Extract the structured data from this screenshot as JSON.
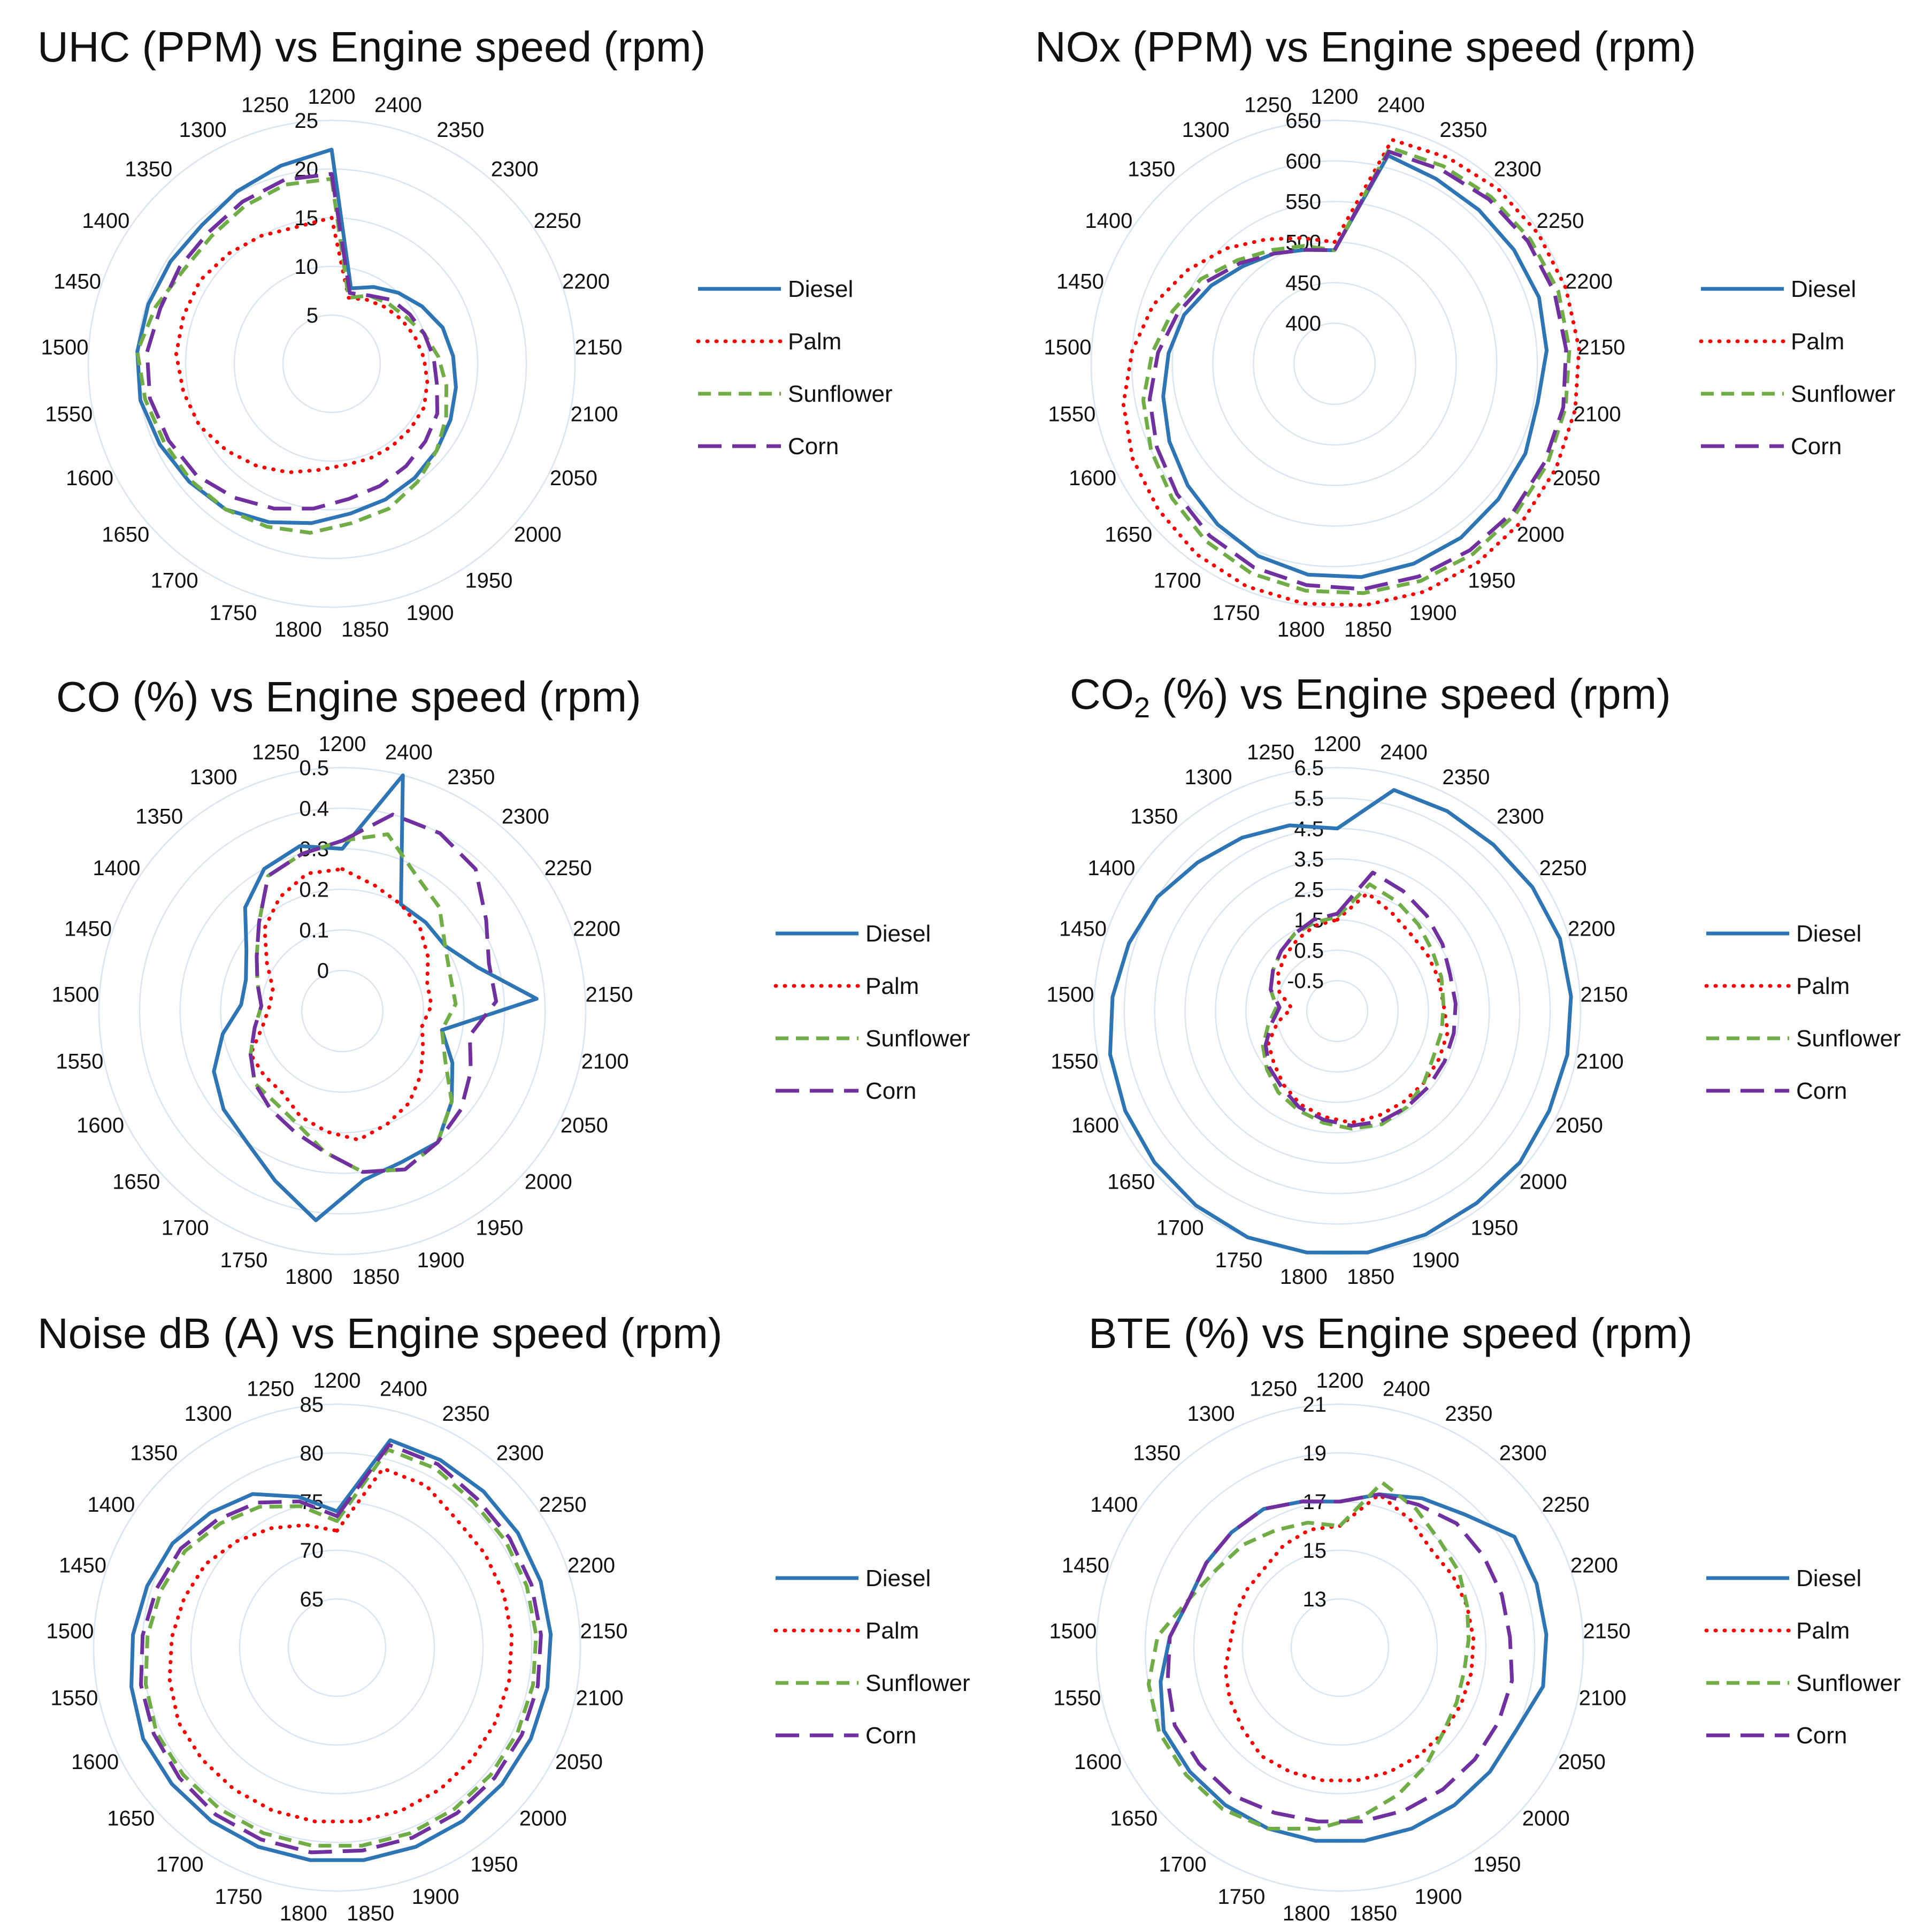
{
  "chart_data": [
    {
      "type": "radar",
      "title": "UHC (PPM) vs Engine speed (rpm)",
      "title_subscript": "",
      "axis_labels": [
        "1200",
        "2400",
        "2350",
        "2300",
        "2250",
        "2200",
        "2150",
        "2100",
        "2050",
        "2000",
        "1950",
        "1900",
        "1850",
        "1800",
        "1750",
        "1700",
        "1650",
        "1600",
        "1550",
        "1500",
        "1450",
        "1400",
        "1350",
        "1300",
        "1250"
      ],
      "radial_ticks": [
        "5",
        "10",
        "15",
        "20",
        "25"
      ],
      "rlim": [
        0,
        25
      ],
      "series": [
        {
          "name": "Diesel",
          "values": [
            22,
            8,
            9,
            10,
            11,
            12,
            12.5,
            13,
            13.5,
            14,
            14.5,
            15,
            15.5,
            16.5,
            17.5,
            18.5,
            19,
            19.5,
            20,
            20,
            19.8,
            19.6,
            19.5,
            20.2,
            21
          ]
        },
        {
          "name": "Palm",
          "values": [
            15,
            7,
            7.5,
            8,
            8.5,
            9,
            9.5,
            10,
            10.5,
            10.5,
            10.5,
            10.5,
            10.5,
            11,
            12,
            13,
            14,
            15,
            15.5,
            16,
            16,
            16,
            15.5,
            15,
            14.5
          ]
        },
        {
          "name": "Sunflower",
          "values": [
            19,
            7,
            8,
            8.5,
            9,
            10,
            11,
            12,
            13,
            14,
            15,
            16,
            16.5,
            17.5,
            18,
            18.5,
            18.8,
            19,
            19.5,
            20,
            19,
            18,
            18,
            18.5,
            19
          ]
        },
        {
          "name": "Corn",
          "values": [
            19.5,
            7.5,
            8,
            9,
            9.5,
            10,
            10.5,
            11,
            12,
            12.5,
            13,
            13.5,
            14,
            15,
            16,
            17,
            18,
            18.5,
            19,
            19,
            18.5,
            18.5,
            18.5,
            19,
            19.5
          ]
        }
      ]
    },
    {
      "type": "radar",
      "title": "NOx (PPM) vs Engine speed (rpm)",
      "title_subscript": "",
      "axis_labels": [
        "1200",
        "2400",
        "2350",
        "2300",
        "2250",
        "2200",
        "2150",
        "2100",
        "2050",
        "2000",
        "1950",
        "1900",
        "1850",
        "1800",
        "1750",
        "1700",
        "1650",
        "1600",
        "1550",
        "1500",
        "1450",
        "1400",
        "1350",
        "1300",
        "1250"
      ],
      "radial_ticks": [
        "400",
        "450",
        "500",
        "550",
        "600",
        "650"
      ],
      "rlim": [
        350,
        650
      ],
      "series": [
        {
          "name": "Diesel",
          "values": [
            490,
            615,
            610,
            610,
            612,
            615,
            612,
            605,
            610,
            612,
            615,
            615,
            615,
            612,
            605,
            595,
            585,
            575,
            565,
            555,
            545,
            530,
            515,
            505,
            495
          ]
        },
        {
          "name": "Palm",
          "values": [
            500,
            635,
            640,
            645,
            648,
            650,
            652,
            652,
            652,
            652,
            652,
            652,
            650,
            648,
            645,
            640,
            632,
            625,
            615,
            600,
            585,
            565,
            545,
            525,
            510
          ]
        },
        {
          "name": "Sunflower",
          "values": [
            490,
            625,
            628,
            632,
            636,
            640,
            640,
            640,
            640,
            640,
            640,
            638,
            635,
            632,
            628,
            620,
            610,
            600,
            590,
            575,
            560,
            545,
            525,
            510,
            500
          ]
        },
        {
          "name": "Corn",
          "values": [
            490,
            620,
            623,
            628,
            632,
            635,
            636,
            637,
            636,
            636,
            634,
            632,
            630,
            625,
            620,
            612,
            602,
            592,
            582,
            568,
            553,
            538,
            520,
            505,
            495
          ]
        }
      ]
    },
    {
      "type": "radar",
      "title": "CO (%) vs Engine speed (rpm)",
      "title_subscript": "",
      "axis_labels": [
        "1200",
        "2400",
        "2350",
        "2300",
        "2250",
        "2200",
        "2150",
        "2100",
        "2050",
        "2000",
        "1950",
        "1900",
        "1850",
        "1800",
        "1750",
        "1700",
        "1650",
        "1600",
        "1550",
        "1500",
        "1450",
        "1400",
        "1350",
        "1300",
        "1250"
      ],
      "radial_ticks": [
        "0",
        "0.1",
        "0.2",
        "0.3",
        "0.4",
        "0.5"
      ],
      "rlim": [
        -0.1,
        0.5
      ],
      "series": [
        {
          "name": "Diesel",
          "values": [
            0.3,
            0.5,
            0.2,
            0.2,
            0.2,
            0.25,
            0.38,
            0.15,
            0.2,
            0.25,
            0.3,
            0.3,
            0.32,
            0.42,
            0.35,
            0.3,
            0.28,
            0.25,
            0.2,
            0.15,
            0.15,
            0.18,
            0.25,
            0.3,
            0.32
          ]
        },
        {
          "name": "Palm",
          "values": [
            0.25,
            0.22,
            0.2,
            0.18,
            0.15,
            0.12,
            0.12,
            0.1,
            0.12,
            0.15,
            0.18,
            0.2,
            0.22,
            0.2,
            0.18,
            0.15,
            0.15,
            0.15,
            0.1,
            0.08,
            0.08,
            0.12,
            0.18,
            0.22,
            0.25
          ]
        },
        {
          "name": "Sunflower",
          "values": [
            0.32,
            0.35,
            0.28,
            0.25,
            0.2,
            0.18,
            0.18,
            0.15,
            0.18,
            0.25,
            0.3,
            0.32,
            0.3,
            0.25,
            0.2,
            0.18,
            0.18,
            0.15,
            0.12,
            0.1,
            0.12,
            0.15,
            0.2,
            0.28,
            0.3
          ]
        },
        {
          "name": "Corn",
          "values": [
            0.32,
            0.4,
            0.4,
            0.38,
            0.32,
            0.28,
            0.28,
            0.22,
            0.25,
            0.28,
            0.3,
            0.32,
            0.3,
            0.25,
            0.22,
            0.2,
            0.18,
            0.15,
            0.12,
            0.1,
            0.12,
            0.15,
            0.2,
            0.28,
            0.3
          ]
        }
      ]
    },
    {
      "type": "radar",
      "title": "CO (%) vs Engine speed (rpm)",
      "title_subscript": "2",
      "axis_labels": [
        "1200",
        "2400",
        "2350",
        "2300",
        "2250",
        "2200",
        "2150",
        "2100",
        "2050",
        "2000",
        "1950",
        "1900",
        "1850",
        "1800",
        "1750",
        "1700",
        "1650",
        "1600",
        "1550",
        "1500",
        "1450",
        "1400",
        "1350",
        "1300",
        "1250"
      ],
      "radial_ticks": [
        "-0.5",
        "0.5",
        "1.5",
        "2.5",
        "3.5",
        "4.5",
        "5.5",
        "6.5"
      ],
      "rlim": [
        -1.5,
        6.5
      ],
      "series": [
        {
          "name": "Diesel",
          "values": [
            4.5,
            6,
            6,
            6,
            6.1,
            6.2,
            6.2,
            6.2,
            6.2,
            6.3,
            6.3,
            6.4,
            6.5,
            6.5,
            6.5,
            6.4,
            6.3,
            6.2,
            6.1,
            5.9,
            5.7,
            5.5,
            5.2,
            5,
            4.8
          ]
        },
        {
          "name": "Palm",
          "values": [
            1.5,
            2.5,
            2.2,
            2,
            2,
            2,
            2,
            2.2,
            2.2,
            2.2,
            2.2,
            2.2,
            2.2,
            2,
            1.8,
            1.5,
            1.2,
            1,
            0.5,
            0,
            0.5,
            0.8,
            1,
            1.2,
            1.4
          ]
        },
        {
          "name": "Sunflower",
          "values": [
            1.6,
            2.8,
            2.6,
            2.4,
            2.2,
            2.1,
            2,
            2,
            2,
            2.2,
            2.4,
            2.5,
            2.4,
            2.2,
            2,
            1.8,
            1.5,
            1.2,
            0.8,
            0.5,
            0.8,
            1,
            1.2,
            1.4,
            1.5
          ]
        },
        {
          "name": "Corn",
          "values": [
            1.7,
            3.2,
            3,
            2.8,
            2.6,
            2.4,
            2.4,
            2.4,
            2.4,
            2.4,
            2.4,
            2.4,
            2.3,
            2.1,
            1.9,
            1.6,
            1.4,
            1.1,
            0.7,
            0.4,
            0.8,
            1,
            1.2,
            1.4,
            1.6
          ]
        }
      ]
    },
    {
      "type": "radar",
      "title": "Noise dB (A)  vs Engine speed (rpm)",
      "title_subscript": "",
      "axis_labels": [
        "1200",
        "2400",
        "2350",
        "2300",
        "2250",
        "2200",
        "2150",
        "2100",
        "2050",
        "2000",
        "1950",
        "1900",
        "1850",
        "1800",
        "1750",
        "1700",
        "1650",
        "1600",
        "1550",
        "1500",
        "1450",
        "1400",
        "1350",
        "1300",
        "1250"
      ],
      "radial_ticks": [
        "65",
        "70",
        "75",
        "80",
        "85"
      ],
      "rlim": [
        60,
        85
      ],
      "series": [
        {
          "name": "Diesel",
          "values": [
            74,
            82,
            82,
            82,
            82,
            82,
            82,
            82,
            82,
            82,
            82,
            82,
            82,
            82,
            82,
            82,
            82,
            82,
            81.5,
            81,
            80.5,
            80,
            79,
            78,
            76
          ]
        },
        {
          "name": "Palm",
          "values": [
            72,
            79,
            79,
            78,
            78,
            78,
            78,
            78,
            78,
            78,
            78,
            78,
            78,
            78,
            78,
            78,
            78,
            78,
            77.5,
            77,
            76.5,
            76,
            75,
            74,
            73
          ]
        },
        {
          "name": "Sunflower",
          "values": [
            73,
            81,
            81,
            80.5,
            80.5,
            80.5,
            80.5,
            80.5,
            80.5,
            80.5,
            80.5,
            80.5,
            80.5,
            80.5,
            80.5,
            80.5,
            80.5,
            80.5,
            80,
            79.5,
            79,
            78.5,
            77.5,
            76.5,
            75
          ]
        },
        {
          "name": "Corn",
          "values": [
            73.5,
            81.5,
            81.5,
            81,
            81,
            81,
            81,
            81,
            81,
            81,
            81,
            81,
            81,
            81.2,
            81.2,
            81.2,
            81,
            80.8,
            80.5,
            80,
            79.5,
            79,
            78,
            77,
            75.5
          ]
        }
      ]
    },
    {
      "type": "radar",
      "title": "BTE (%) vs Engine speed (rpm)",
      "title_subscript": "",
      "axis_labels": [
        "1200",
        "2400",
        "2350",
        "2300",
        "2250",
        "2200",
        "2150",
        "2100",
        "2050",
        "2000",
        "1950",
        "1900",
        "1850",
        "1800",
        "1750",
        "1700",
        "1650",
        "1600",
        "1550",
        "1500",
        "1450",
        "1400",
        "1350",
        "1300",
        "1250"
      ],
      "radial_ticks": [
        "13",
        "15",
        "17",
        "19",
        "21"
      ],
      "rlim": [
        11,
        21
      ],
      "series": [
        {
          "name": "Diesel",
          "values": [
            17,
            17.5,
            18,
            18.5,
            19.5,
            19.5,
            19.5,
            19.5,
            19,
            19,
            19,
            19,
            19,
            19,
            19,
            19,
            19,
            19,
            18.5,
            18,
            17.5,
            17.5,
            17.5,
            17.5,
            17.2
          ]
        },
        {
          "name": "Palm",
          "values": [
            16,
            17.5,
            17,
            16.5,
            16.5,
            16.5,
            16.5,
            16.5,
            16.5,
            16.5,
            16.5,
            16.5,
            16.5,
            16.5,
            16.5,
            16.5,
            16.2,
            16,
            15.8,
            15.5,
            15.5,
            15.5,
            15.5,
            15.8,
            16
          ]
        },
        {
          "name": "Sunflower",
          "values": [
            16,
            18,
            17.5,
            17,
            16.8,
            16.5,
            16.3,
            16.2,
            16.3,
            16.5,
            17,
            17.5,
            18,
            18.5,
            19,
            19.2,
            19.2,
            19.2,
            19,
            18.5,
            17.5,
            17,
            16.8,
            16.5,
            16.3
          ]
        },
        {
          "name": "Corn",
          "values": [
            17,
            17.5,
            17.7,
            18,
            18,
            18,
            18,
            18.2,
            18.2,
            18.2,
            18.2,
            18.2,
            18.2,
            18.2,
            18.3,
            18.5,
            18.5,
            18.5,
            18.2,
            18,
            17.5,
            17.5,
            17.5,
            17.5,
            17.2
          ]
        }
      ]
    }
  ],
  "legend": [
    {
      "name": "Diesel",
      "color": "#2e75b6",
      "dash": "solid"
    },
    {
      "name": "Palm",
      "color": "#ff0000",
      "dash": "dotted"
    },
    {
      "name": "Sunflower",
      "color": "#70ad47",
      "dash": "dashed"
    },
    {
      "name": "Corn",
      "color": "#7030a0",
      "dash": "longdash"
    }
  ]
}
